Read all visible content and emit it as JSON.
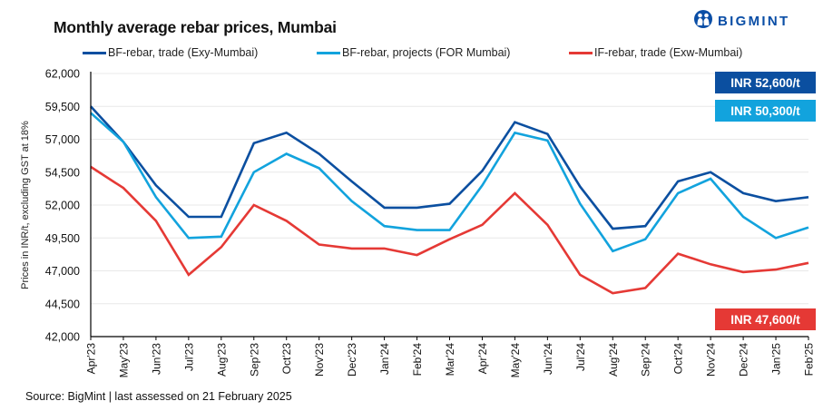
{
  "header": {
    "title": "Monthly average rebar prices, Mumbai",
    "logo_text": "BIGMINT",
    "logo_icon": "bigmint-people-icon"
  },
  "footer": {
    "source": "Source:  BigMint  | last assessed on 21 February  2025"
  },
  "colors": {
    "dark_blue": "#0b4fa0",
    "light_blue": "#12a3dd",
    "red": "#e53935",
    "grid": "#e6e6e6",
    "axis": "#000000"
  },
  "badges": [
    {
      "text": "INR 52,600/t",
      "series": "BF-rebar, trade (Exy-Mumbai)",
      "color": "#0b4fa0"
    },
    {
      "text": "INR 50,300/t",
      "series": "BF-rebar, projects (FOR Mumbai)",
      "color": "#12a3dd"
    },
    {
      "text": "INR 47,600/t",
      "series": "IF-rebar, trade (Exw-Mumbai)",
      "color": "#e53935"
    }
  ],
  "chart_data": {
    "type": "line",
    "title": "Monthly average rebar prices, Mumbai",
    "xlabel": "",
    "ylabel": "Prices in INR/t, excluding GST at 18%",
    "ylim": [
      42000,
      62000
    ],
    "yticks": [
      42000,
      44500,
      47000,
      49500,
      52000,
      54500,
      57000,
      59500,
      62000
    ],
    "ytick_labels": [
      "42,000",
      "44,500",
      "47,000",
      "49,500",
      "52,000",
      "54,500",
      "57,000",
      "59,500",
      "62,000"
    ],
    "grid": true,
    "legend_position": "top",
    "categories": [
      "Apr'23",
      "May'23",
      "Jun'23",
      "Jul'23",
      "Aug'23",
      "Sep'23",
      "Oct'23",
      "Nov'23",
      "Dec'23",
      "Jan'24",
      "Feb'24",
      "Mar'24",
      "Apr'24",
      "May'24",
      "Jun'24",
      "Jul'24",
      "Aug'24",
      "Sep'24",
      "Oct'24",
      "Nov'24",
      "Dec'24",
      "Jan'25",
      "Feb'25"
    ],
    "series": [
      {
        "name": "BF-rebar, trade (Exy-Mumbai)",
        "color": "#0b4fa0",
        "values": [
          59500,
          56800,
          53500,
          51100,
          51100,
          56700,
          57500,
          55900,
          53800,
          51800,
          51800,
          52100,
          54600,
          58300,
          57400,
          53400,
          50200,
          50400,
          53800,
          54500,
          52900,
          52300,
          52600
        ]
      },
      {
        "name": "BF-rebar, projects (FOR Mumbai)",
        "color": "#12a3dd",
        "values": [
          59000,
          56800,
          52600,
          49500,
          49600,
          54500,
          55900,
          54800,
          52300,
          50400,
          50100,
          50100,
          53500,
          57500,
          56900,
          52100,
          48500,
          49400,
          52900,
          54000,
          51100,
          49500,
          50300
        ]
      },
      {
        "name": "IF-rebar, trade (Exw-Mumbai)",
        "color": "#e53935",
        "values": [
          54900,
          53300,
          50800,
          46700,
          48800,
          52000,
          50800,
          49000,
          48700,
          48700,
          48200,
          49400,
          50500,
          52900,
          50500,
          46700,
          45300,
          45700,
          48300,
          47500,
          46900,
          47100,
          47600
        ]
      }
    ],
    "annotations": [
      "INR 52,600/t",
      "INR 50,300/t",
      "INR 47,600/t"
    ]
  }
}
